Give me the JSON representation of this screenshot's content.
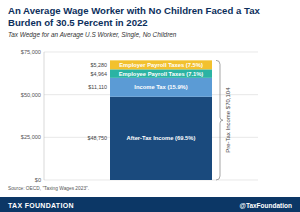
{
  "chart_data": {
    "type": "bar",
    "title": "An Average Wage Worker with No Children Faced a Tax Burden of 30.5 Percent in 2022",
    "subtitle": "Tax Wedge for an Average U.S Worker, Single, No Children",
    "stacked": true,
    "data_labels": true,
    "grid": true,
    "categories": [
      null
    ],
    "series": [
      {
        "name": "After-Tax Income (69.5%)",
        "color": "#1a4a7d",
        "values": [
          48750
        ],
        "value_labels": [
          "$48,750"
        ]
      },
      {
        "name": "Income Tax (15.9%)",
        "color": "#5b9bd5",
        "values": [
          11110
        ],
        "value_labels": [
          "$11,110"
        ]
      },
      {
        "name": "Employee Payroll Taxes (7.1%)",
        "color": "#2bb3a3",
        "values": [
          4964
        ],
        "value_labels": [
          "$4,964"
        ]
      },
      {
        "name": "Employer Payroll Taxes (7.5%)",
        "color": "#f2c12e",
        "values": [
          5280
        ],
        "value_labels": [
          "$5,280"
        ]
      }
    ],
    "ylim": [
      0,
      75000
    ],
    "yticks": [
      {
        "value": 0,
        "label": "$0"
      },
      {
        "value": 25000,
        "label": "$25,000"
      },
      {
        "value": 50000,
        "label": "$50,000"
      },
      {
        "value": 75000,
        "label": "$75,000"
      }
    ],
    "annotations": [
      "Pre-Tax Income $70,104"
    ],
    "source": "Source: OECD, \"Taxing Wages 2023\".",
    "footer": {
      "left": "TAX FOUNDATION",
      "right": "@TaxFoundation"
    }
  }
}
